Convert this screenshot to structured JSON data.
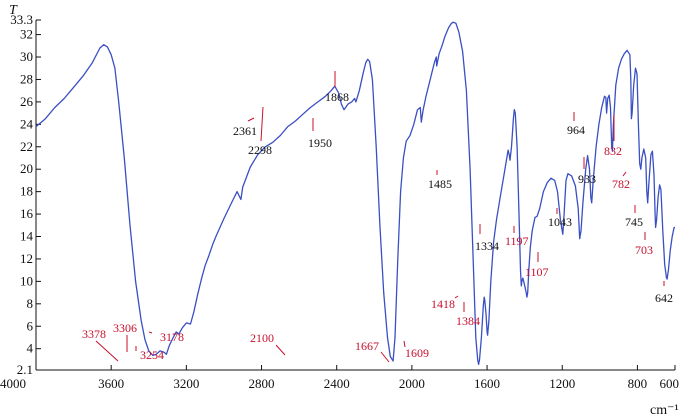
{
  "chart_data": {
    "type": "line",
    "title": "",
    "xlabel": "cm⁻¹",
    "ylabel": "T",
    "xlim": [
      4000,
      600
    ],
    "ylim": [
      2.1,
      33.3
    ],
    "grid": false,
    "x_ticks": [
      "4000",
      "3600",
      "3200",
      "2800",
      "2400",
      "2000",
      "1600",
      "1200",
      "800",
      "600"
    ],
    "y_ticks": [
      "2.1",
      "4",
      "6",
      "8",
      "10",
      "12",
      "14",
      "16",
      "18",
      "20",
      "22",
      "24",
      "26",
      "28",
      "30",
      "32",
      "33.3"
    ],
    "series": [
      {
        "color": "#3a4fc4",
        "points": [
          [
            4000,
            23.8
          ],
          [
            3950,
            24.5
          ],
          [
            3900,
            25.5
          ],
          [
            3850,
            26.3
          ],
          [
            3800,
            27.3
          ],
          [
            3750,
            28.3
          ],
          [
            3700,
            29.5
          ],
          [
            3660,
            30.8
          ],
          [
            3640,
            31.1
          ],
          [
            3620,
            30.9
          ],
          [
            3600,
            30.2
          ],
          [
            3580,
            29.0
          ],
          [
            3560,
            26.0
          ],
          [
            3530,
            21.0
          ],
          [
            3500,
            15.0
          ],
          [
            3470,
            10.0
          ],
          [
            3440,
            6.5
          ],
          [
            3420,
            4.8
          ],
          [
            3400,
            3.8
          ],
          [
            3378,
            3.4
          ],
          [
            3360,
            3.5
          ],
          [
            3340,
            3.8
          ],
          [
            3320,
            3.7
          ],
          [
            3306,
            3.5
          ],
          [
            3290,
            4.3
          ],
          [
            3270,
            5.0
          ],
          [
            3254,
            5.5
          ],
          [
            3240,
            5.3
          ],
          [
            3220,
            5.9
          ],
          [
            3200,
            6.3
          ],
          [
            3178,
            6.2
          ],
          [
            3160,
            7.3
          ],
          [
            3140,
            8.8
          ],
          [
            3120,
            10.2
          ],
          [
            3100,
            11.4
          ],
          [
            3080,
            12.3
          ],
          [
            3060,
            13.3
          ],
          [
            3040,
            14.1
          ],
          [
            3000,
            15.6
          ],
          [
            2960,
            17.0
          ],
          [
            2930,
            18.0
          ],
          [
            2910,
            17.3
          ],
          [
            2900,
            18.4
          ],
          [
            2860,
            20.2
          ],
          [
            2820,
            21.3
          ],
          [
            2780,
            22.0
          ],
          [
            2740,
            22.4
          ],
          [
            2700,
            23.0
          ],
          [
            2660,
            23.8
          ],
          [
            2620,
            24.3
          ],
          [
            2580,
            24.9
          ],
          [
            2540,
            25.5
          ],
          [
            2500,
            26.0
          ],
          [
            2460,
            26.5
          ],
          [
            2430,
            27.0
          ],
          [
            2410,
            27.4
          ],
          [
            2390,
            26.8
          ],
          [
            2375,
            25.8
          ],
          [
            2361,
            25.3
          ],
          [
            2340,
            25.8
          ],
          [
            2320,
            26.0
          ],
          [
            2305,
            26.3
          ],
          [
            2298,
            26.0
          ],
          [
            2280,
            27.0
          ],
          [
            2260,
            28.5
          ],
          [
            2245,
            29.5
          ],
          [
            2235,
            29.8
          ],
          [
            2225,
            29.6
          ],
          [
            2210,
            28.0
          ],
          [
            2190,
            22.0
          ],
          [
            2170,
            15.0
          ],
          [
            2150,
            9.0
          ],
          [
            2130,
            5.0
          ],
          [
            2115,
            3.3
          ],
          [
            2100,
            2.9
          ],
          [
            2090,
            5.0
          ],
          [
            2075,
            12.0
          ],
          [
            2060,
            18.0
          ],
          [
            2045,
            21.0
          ],
          [
            2030,
            22.5
          ],
          [
            2010,
            23.0
          ],
          [
            1990,
            24.0
          ],
          [
            1970,
            25.3
          ],
          [
            1955,
            25.5
          ],
          [
            1950,
            24.2
          ],
          [
            1940,
            25.3
          ],
          [
            1925,
            26.5
          ],
          [
            1910,
            27.5
          ],
          [
            1895,
            28.5
          ],
          [
            1880,
            29.5
          ],
          [
            1870,
            30.0
          ],
          [
            1868,
            29.2
          ],
          [
            1855,
            30.3
          ],
          [
            1840,
            31.0
          ],
          [
            1825,
            31.8
          ],
          [
            1805,
            32.6
          ],
          [
            1790,
            33.0
          ],
          [
            1780,
            33.1
          ],
          [
            1765,
            33.0
          ],
          [
            1750,
            32.2
          ],
          [
            1730,
            30.5
          ],
          [
            1710,
            27.0
          ],
          [
            1690,
            20.0
          ],
          [
            1670,
            10.0
          ],
          [
            1660,
            5.0
          ],
          [
            1650,
            3.0
          ],
          [
            1645,
            2.6
          ],
          [
            1640,
            3.0
          ],
          [
            1630,
            5.0
          ],
          [
            1620,
            7.8
          ],
          [
            1615,
            8.6
          ],
          [
            1612,
            8.3
          ],
          [
            1605,
            7.0
          ],
          [
            1600,
            5.5
          ],
          [
            1597,
            5.2
          ],
          [
            1590,
            6.5
          ],
          [
            1580,
            10.0
          ],
          [
            1565,
            13.5
          ],
          [
            1550,
            15.5
          ],
          [
            1530,
            17.5
          ],
          [
            1510,
            19.5
          ],
          [
            1495,
            21.0
          ],
          [
            1488,
            21.7
          ],
          [
            1482,
            21.3
          ],
          [
            1478,
            20.8
          ],
          [
            1470,
            22.0
          ],
          [
            1460,
            24.5
          ],
          [
            1455,
            25.3
          ],
          [
            1450,
            25.0
          ],
          [
            1440,
            22.0
          ],
          [
            1430,
            16.0
          ],
          [
            1422,
            11.0
          ],
          [
            1418,
            9.6
          ],
          [
            1415,
            10.0
          ],
          [
            1410,
            10.3
          ],
          [
            1405,
            10.0
          ],
          [
            1398,
            9.5
          ],
          [
            1392,
            9.0
          ],
          [
            1388,
            8.6
          ],
          [
            1384,
            9.0
          ],
          [
            1378,
            11.0
          ],
          [
            1370,
            13.0
          ],
          [
            1360,
            14.5
          ],
          [
            1345,
            15.7
          ],
          [
            1334,
            15.8
          ],
          [
            1320,
            16.5
          ],
          [
            1300,
            18.0
          ],
          [
            1280,
            18.8
          ],
          [
            1260,
            19.2
          ],
          [
            1240,
            19.0
          ],
          [
            1225,
            18.0
          ],
          [
            1210,
            15.5
          ],
          [
            1200,
            14.5
          ],
          [
            1197,
            14.2
          ],
          [
            1190,
            16.0
          ],
          [
            1180,
            19.0
          ],
          [
            1170,
            19.6
          ],
          [
            1150,
            19.4
          ],
          [
            1130,
            18.5
          ],
          [
            1115,
            16.5
          ],
          [
            1107,
            13.8
          ],
          [
            1100,
            14.5
          ],
          [
            1090,
            17.0
          ],
          [
            1075,
            20.0
          ],
          [
            1065,
            21.2
          ],
          [
            1055,
            20.0
          ],
          [
            1048,
            17.5
          ],
          [
            1043,
            17.0
          ],
          [
            1035,
            19.0
          ],
          [
            1020,
            22.0
          ],
          [
            1005,
            24.0
          ],
          [
            990,
            25.5
          ],
          [
            975,
            26.5
          ],
          [
            968,
            26.4
          ],
          [
            964,
            25.0
          ],
          [
            958,
            26.3
          ],
          [
            950,
            26.6
          ],
          [
            943,
            25.5
          ],
          [
            937,
            22.0
          ],
          [
            933,
            21.6
          ],
          [
            928,
            24.0
          ],
          [
            915,
            27.5
          ],
          [
            900,
            29.0
          ],
          [
            885,
            29.8
          ],
          [
            870,
            30.3
          ],
          [
            855,
            30.6
          ],
          [
            840,
            30.2
          ],
          [
            835,
            28.0
          ],
          [
            832,
            24.5
          ],
          [
            828,
            25.0
          ],
          [
            820,
            27.5
          ],
          [
            810,
            29.0
          ],
          [
            802,
            28.5
          ],
          [
            795,
            24.0
          ],
          [
            788,
            20.5
          ],
          [
            782,
            20.0
          ],
          [
            776,
            21.0
          ],
          [
            766,
            21.8
          ],
          [
            756,
            21.0
          ],
          [
            750,
            18.0
          ],
          [
            745,
            17.0
          ],
          [
            740,
            18.5
          ],
          [
            728,
            21.3
          ],
          [
            720,
            21.6
          ],
          [
            712,
            19.5
          ],
          [
            706,
            16.0
          ],
          [
            703,
            14.8
          ],
          [
            698,
            15.5
          ],
          [
            690,
            17.5
          ],
          [
            682,
            18.6
          ],
          [
            675,
            18.2
          ],
          [
            665,
            14.5
          ],
          [
            655,
            11.5
          ],
          [
            645,
            10.3
          ],
          [
            642,
            10.2
          ],
          [
            635,
            11.0
          ],
          [
            625,
            12.8
          ],
          [
            615,
            14.0
          ],
          [
            605,
            14.8
          ],
          [
            600,
            14.8
          ]
        ]
      }
    ],
    "annotations": [
      {
        "text": "3378",
        "x": 3378,
        "color": "red"
      },
      {
        "text": "3306",
        "x": 3306,
        "color": "red"
      },
      {
        "text": "3254",
        "x": 3254,
        "color": "red"
      },
      {
        "text": "3178",
        "x": 3178,
        "color": "red"
      },
      {
        "text": "2361",
        "x": 2361,
        "color": "black"
      },
      {
        "text": "2298",
        "x": 2298,
        "color": "black"
      },
      {
        "text": "2100",
        "x": 2100,
        "color": "red"
      },
      {
        "text": "1950",
        "x": 1950,
        "color": "black"
      },
      {
        "text": "1868",
        "x": 1868,
        "color": "black"
      },
      {
        "text": "1667",
        "x": 1667,
        "color": "red"
      },
      {
        "text": "1609",
        "x": 1609,
        "color": "red"
      },
      {
        "text": "1485",
        "x": 1485,
        "color": "black"
      },
      {
        "text": "1418",
        "x": 1418,
        "color": "red"
      },
      {
        "text": "1384",
        "x": 1384,
        "color": "red"
      },
      {
        "text": "1334",
        "x": 1334,
        "color": "black"
      },
      {
        "text": "1197",
        "x": 1197,
        "color": "red"
      },
      {
        "text": "1107",
        "x": 1107,
        "color": "red"
      },
      {
        "text": "1043",
        "x": 1043,
        "color": "black"
      },
      {
        "text": "964",
        "x": 964,
        "color": "black"
      },
      {
        "text": "933",
        "x": 933,
        "color": "black"
      },
      {
        "text": "832",
        "x": 832,
        "color": "red"
      },
      {
        "text": "782",
        "x": 782,
        "color": "red"
      },
      {
        "text": "745",
        "x": 745,
        "color": "black"
      },
      {
        "text": "703",
        "x": 703,
        "color": "red"
      },
      {
        "text": "642",
        "x": 642,
        "color": "black"
      }
    ],
    "colors": {
      "line": "#3a4fc4",
      "red": "#c8102e",
      "black": "#111111"
    }
  }
}
